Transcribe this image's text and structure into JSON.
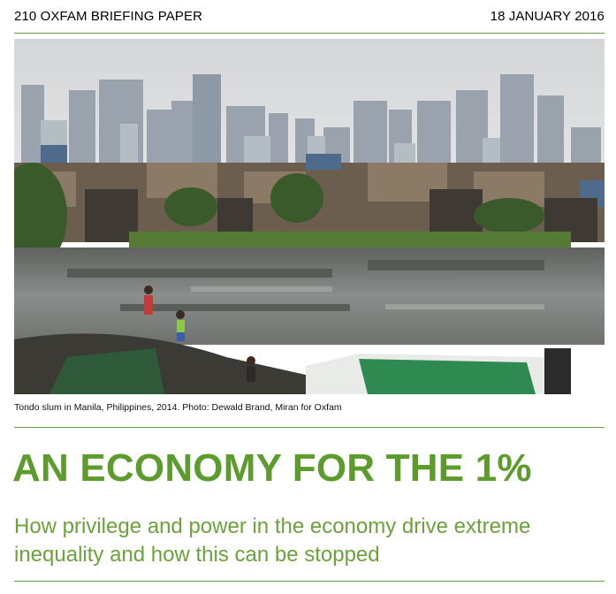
{
  "header": {
    "series": "210 OXFAM BRIEFING PAPER",
    "date": "18 JANUARY 2016"
  },
  "photo": {
    "caption": "Tondo slum in Manila, Philippines, 2014. Photo: Dewald Brand, Miran for Oxfam"
  },
  "title": "AN ECONOMY FOR THE 1%",
  "subtitle": "How privilege and power in the economy drive extreme inequality and how this can be stopped",
  "colors": {
    "accent": "#5b9c2c",
    "rule": "#6aa33a"
  }
}
